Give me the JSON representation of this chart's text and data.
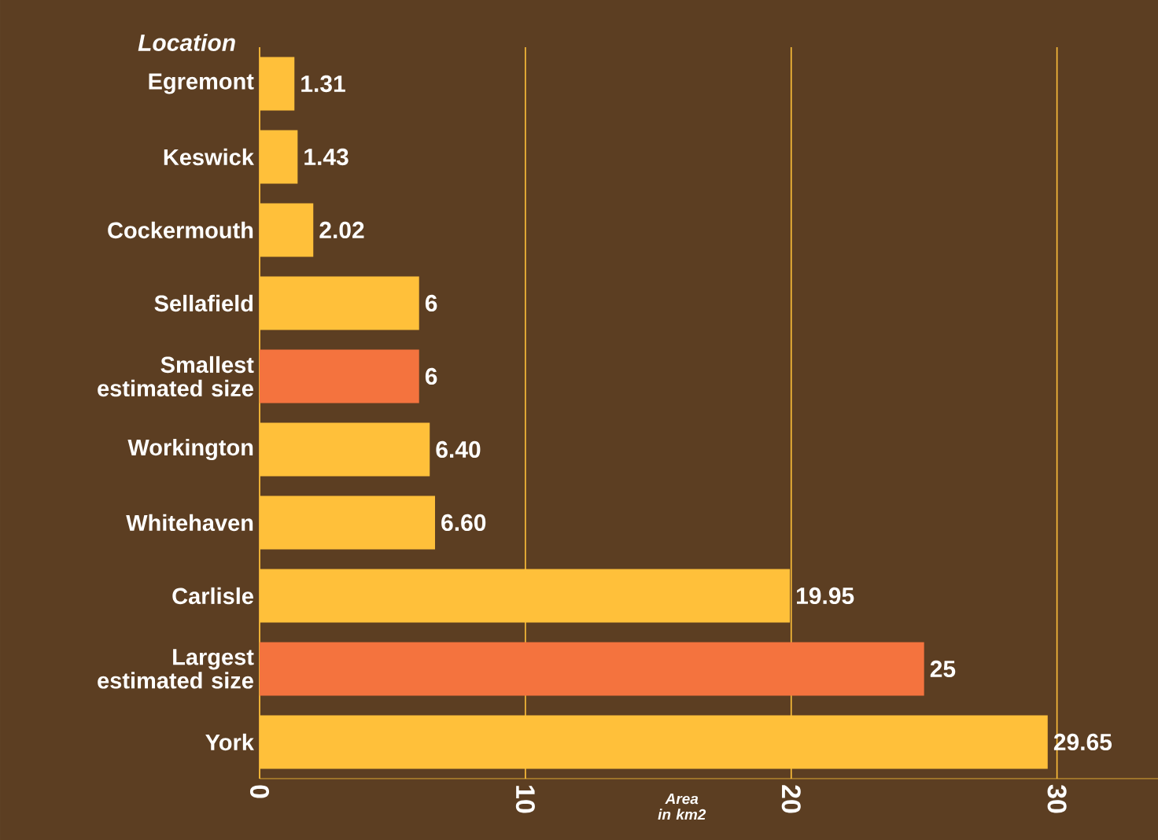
{
  "chart_data": {
    "type": "bar",
    "orientation": "horizontal",
    "ylabel": "Location",
    "xlabel": "Area in km2",
    "categories": [
      "Egremont",
      "Keswick",
      "Cockermouth",
      "Sellafield",
      "Smallest estimated size",
      "Workington",
      "Whitehaven",
      "Carlisle",
      "Largest estimated size",
      "York"
    ],
    "values": [
      1.31,
      1.43,
      2.02,
      6,
      6,
      6.4,
      6.6,
      19.95,
      25,
      29.65
    ],
    "value_labels": [
      "1.31",
      "1.43",
      "2.02",
      "6",
      "6",
      "6.40",
      "6.60",
      "19.95",
      "25",
      "29.65"
    ],
    "colors": [
      "#ffc03a",
      "#ffc03a",
      "#ffc03a",
      "#ffc03a",
      "#f4733e",
      "#ffc03a",
      "#ffc03a",
      "#ffc03a",
      "#f4733e",
      "#ffc03a"
    ],
    "xlim": [
      0,
      33.8
    ],
    "xticks": [
      0,
      10,
      20,
      30
    ],
    "grid": "x"
  }
}
